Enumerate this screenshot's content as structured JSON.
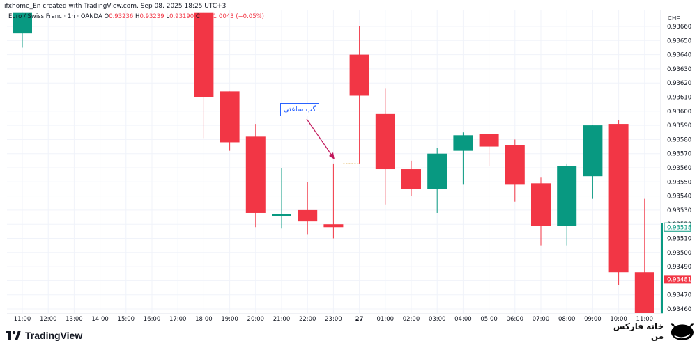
{
  "header": {
    "title": "ifxhome_En created with TradingView.com, Sep 08, 2025 18:25 UTC+3",
    "symbol": "Euro / Swiss Franc · 1h · OANDA",
    "open_label": "O",
    "open": "0.93236",
    "high_label": "H",
    "high": "0.93239",
    "low_label": "L",
    "low": "0.93190",
    "close_label": "C",
    "close": "0.931",
    "change": "0043 (−0.05%)"
  },
  "currency": "CHF",
  "annotation": "گپ ساعتی",
  "branding": {
    "tradingview": "TradingView",
    "site": "خانه فارکس من"
  },
  "price_tags": {
    "current": "0.93518",
    "bid": "0.93481"
  },
  "chart_data": {
    "type": "candlestick",
    "ylim": [
      0.93456,
      0.9367
    ],
    "yticks": [
      "0.93460",
      "0.93470",
      "0.93480",
      "0.93490",
      "0.93500",
      "0.93510",
      "0.93520",
      "0.93530",
      "0.93540",
      "0.93550",
      "0.93560",
      "0.93570",
      "0.93580",
      "0.93590",
      "0.93600",
      "0.93610",
      "0.93620",
      "0.93630",
      "0.93640",
      "0.93650",
      "0.93660"
    ],
    "xticks": [
      "11:00",
      "12:00",
      "13:00",
      "14:00",
      "15:00",
      "16:00",
      "17:00",
      "18:00",
      "19:00",
      "20:00",
      "21:00",
      "22:00",
      "23:00",
      "27",
      "01:00",
      "02:00",
      "03:00",
      "04:00",
      "05:00",
      "06:00",
      "07:00",
      "08:00",
      "09:00",
      "10:00",
      "11:00"
    ],
    "candles": [
      {
        "x": "11:00",
        "o": 0.93655,
        "h": 0.9367,
        "l": 0.93645,
        "c": 0.9367
      },
      {
        "x": "18:00",
        "o": 0.9367,
        "h": 0.9367,
        "l": 0.93581,
        "c": 0.9361
      },
      {
        "x": "19:00",
        "o": 0.93614,
        "h": 0.93614,
        "l": 0.93572,
        "c": 0.93578
      },
      {
        "x": "20:00",
        "o": 0.93582,
        "h": 0.93591,
        "l": 0.93518,
        "c": 0.93528
      },
      {
        "x": "21:00",
        "o": 0.93526,
        "h": 0.9356,
        "l": 0.93517,
        "c": 0.93527
      },
      {
        "x": "22:00",
        "o": 0.9353,
        "h": 0.9355,
        "l": 0.93513,
        "c": 0.93522
      },
      {
        "x": "23:00",
        "o": 0.9352,
        "h": 0.93563,
        "l": 0.9351,
        "c": 0.93518
      },
      {
        "x": "27",
        "o": 0.9364,
        "h": 0.9366,
        "l": 0.93563,
        "c": 0.93611
      },
      {
        "x": "01:00",
        "o": 0.93598,
        "h": 0.93616,
        "l": 0.93534,
        "c": 0.93559
      },
      {
        "x": "02:00",
        "o": 0.93559,
        "h": 0.93565,
        "l": 0.9354,
        "c": 0.93545
      },
      {
        "x": "03:00",
        "o": 0.93545,
        "h": 0.93574,
        "l": 0.93528,
        "c": 0.9357
      },
      {
        "x": "04:00",
        "o": 0.93572,
        "h": 0.93585,
        "l": 0.93548,
        "c": 0.93583
      },
      {
        "x": "05:00",
        "o": 0.93584,
        "h": 0.93584,
        "l": 0.93561,
        "c": 0.93575
      },
      {
        "x": "06:00",
        "o": 0.93576,
        "h": 0.9358,
        "l": 0.93536,
        "c": 0.93548
      },
      {
        "x": "07:00",
        "o": 0.93549,
        "h": 0.93553,
        "l": 0.93505,
        "c": 0.93519
      },
      {
        "x": "08:00",
        "o": 0.93519,
        "h": 0.93563,
        "l": 0.93505,
        "c": 0.93561
      },
      {
        "x": "09:00",
        "o": 0.93554,
        "h": 0.9359,
        "l": 0.93538,
        "c": 0.9359
      },
      {
        "x": "10:00",
        "o": 0.93591,
        "h": 0.93594,
        "l": 0.93477,
        "c": 0.93486
      },
      {
        "x": "11:00",
        "o": 0.93486,
        "h": 0.93538,
        "l": 0.93456,
        "c": 0.93456
      }
    ],
    "colors": {
      "up": "#089981",
      "down": "#f23645",
      "current_tag": "#089981",
      "bid_tag": "#f23645",
      "annotation": "#2962ff"
    }
  }
}
